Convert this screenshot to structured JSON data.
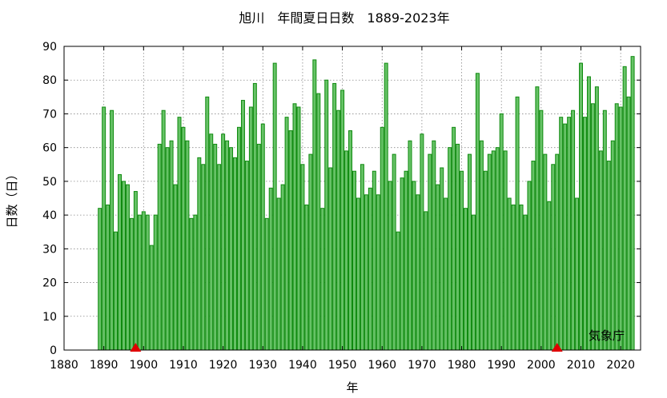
{
  "chart_data": {
    "type": "bar",
    "title": "旭川　年間夏日日数　1889-2023年",
    "xlabel": "年",
    "ylabel": "日数（日）",
    "source": "気象庁",
    "xlim": [
      1880,
      2025
    ],
    "ylim": [
      0,
      90
    ],
    "x_ticks": [
      1880,
      1890,
      1900,
      1910,
      1920,
      1930,
      1940,
      1950,
      1960,
      1970,
      1980,
      1990,
      2000,
      2010,
      2020
    ],
    "y_ticks": [
      0,
      10,
      20,
      30,
      40,
      50,
      60,
      70,
      80,
      90
    ],
    "grid": true,
    "bar_color": "#66c266",
    "bar_edge_color": "#0f8a0f",
    "marker_color": "#e00000",
    "markers": [
      1898,
      2004
    ],
    "start_year": 1889,
    "values": [
      42,
      72,
      43,
      71,
      35,
      52,
      50,
      49,
      39,
      47,
      40,
      41,
      40,
      31,
      40,
      61,
      71,
      60,
      62,
      49,
      69,
      66,
      62,
      39,
      40,
      57,
      55,
      75,
      64,
      61,
      55,
      64,
      62,
      60,
      57,
      66,
      74,
      56,
      72,
      79,
      61,
      67,
      39,
      48,
      85,
      45,
      49,
      69,
      65,
      73,
      72,
      55,
      43,
      58,
      86,
      76,
      42,
      80,
      54,
      79,
      71,
      77,
      59,
      65,
      53,
      45,
      55,
      46,
      48,
      53,
      46,
      66,
      85,
      50,
      58,
      35,
      51,
      53,
      62,
      50,
      46,
      64,
      41,
      58,
      62,
      49,
      54,
      45,
      60,
      66,
      61,
      53,
      42,
      58,
      40,
      82,
      62,
      53,
      58,
      59,
      60,
      70,
      59,
      45,
      43,
      75,
      43,
      40,
      50,
      56,
      78,
      71,
      58,
      44,
      55,
      58,
      69,
      67,
      69,
      71,
      45,
      85,
      69,
      81,
      73,
      78,
      59,
      71,
      56,
      62,
      73,
      72,
      84,
      75,
      87
    ]
  }
}
